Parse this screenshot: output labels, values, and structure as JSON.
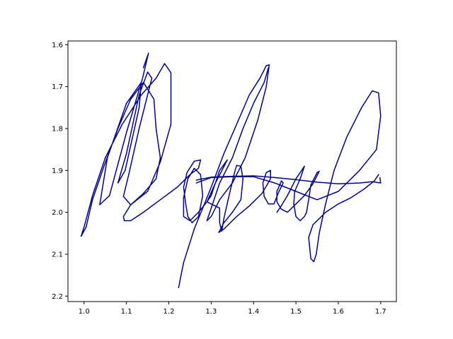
{
  "chart_data": {
    "type": "line",
    "title": "",
    "xlabel": "",
    "ylabel": "",
    "xlim": [
      0.962,
      1.737
    ],
    "ylim": [
      2.213,
      1.591
    ],
    "y_inverted": true,
    "grid": false,
    "x_ticks": [
      {
        "value": 1.0,
        "label": "1.0"
      },
      {
        "value": 1.1,
        "label": "1.1"
      },
      {
        "value": 1.2,
        "label": "1.2"
      },
      {
        "value": 1.3,
        "label": "1.3"
      },
      {
        "value": 1.4,
        "label": "1.4"
      },
      {
        "value": 1.5,
        "label": "1.5"
      },
      {
        "value": 1.6,
        "label": "1.6"
      },
      {
        "value": 1.7,
        "label": "1.7"
      }
    ],
    "y_ticks": [
      {
        "value": 1.6,
        "label": "1.6"
      },
      {
        "value": 1.7,
        "label": "1.7"
      },
      {
        "value": 1.8,
        "label": "1.8"
      },
      {
        "value": 1.9,
        "label": "1.9"
      },
      {
        "value": 2.0,
        "label": "2.0"
      },
      {
        "value": 2.1,
        "label": "2.1"
      },
      {
        "value": 2.2,
        "label": "2.2"
      }
    ],
    "series": [
      {
        "color": "#00008b",
        "strokes": [
          [
            [
              1.14,
              1.655
            ],
            [
              1.152,
              1.62
            ],
            [
              1.138,
              1.68
            ],
            [
              1.1,
              1.81
            ],
            [
              1.06,
              1.96
            ],
            [
              1.037,
              1.982
            ],
            [
              1.055,
              1.87
            ],
            [
              1.1,
              1.74
            ],
            [
              1.135,
              1.69
            ],
            [
              1.13,
              1.75
            ],
            [
              1.097,
              1.9
            ],
            [
              1.08,
              1.93
            ],
            [
              1.1,
              1.86
            ],
            [
              1.13,
              1.72
            ],
            [
              1.15,
              1.665
            ],
            [
              1.16,
              1.68
            ],
            [
              1.13,
              1.8
            ],
            [
              1.105,
              1.912
            ],
            [
              1.093,
              1.962
            ],
            [
              1.11,
              1.982
            ],
            [
              1.15,
              1.95
            ],
            [
              1.18,
              1.88
            ],
            [
              1.205,
              1.79
            ],
            [
              1.205,
              1.667
            ],
            [
              1.19,
              1.645
            ],
            [
              1.17,
              1.68
            ],
            [
              1.135,
              1.72
            ],
            [
              1.09,
              1.79
            ],
            [
              1.05,
              1.87
            ],
            [
              1.02,
              1.96
            ],
            [
              1.0,
              2.035
            ],
            [
              0.993,
              2.057
            ],
            [
              1.005,
              2.035
            ],
            [
              1.02,
              1.97
            ],
            [
              1.047,
              1.89
            ],
            [
              1.08,
              1.8
            ],
            [
              1.11,
              1.73
            ],
            [
              1.14,
              1.69
            ],
            [
              1.165,
              1.73
            ],
            [
              1.17,
              1.8
            ],
            [
              1.18,
              1.87
            ],
            [
              1.17,
              1.92
            ],
            [
              1.14,
              1.955
            ],
            [
              1.11,
              1.982
            ],
            [
              1.093,
              2.01
            ],
            [
              1.095,
              2.02
            ],
            [
              1.11,
              2.02
            ],
            [
              1.14,
              2.0
            ],
            [
              1.18,
              1.97
            ],
            [
              1.22,
              1.94
            ],
            [
              1.25,
              1.91
            ],
            [
              1.27,
              1.895
            ],
            [
              1.275,
              1.875
            ],
            [
              1.26,
              1.878
            ],
            [
              1.243,
              1.905
            ],
            [
              1.235,
              1.94
            ],
            [
              1.24,
              1.98
            ],
            [
              1.245,
              2.01
            ],
            [
              1.255,
              2.025
            ],
            [
              1.27,
              2.01
            ],
            [
              1.28,
              1.96
            ],
            [
              1.275,
              1.91
            ],
            [
              1.26,
              1.895
            ],
            [
              1.245,
              1.92
            ],
            [
              1.235,
              1.965
            ],
            [
              1.235,
              2.01
            ],
            [
              1.25,
              2.02
            ],
            [
              1.27,
              2.0
            ],
            [
              1.29,
              1.975
            ],
            [
              1.31,
              1.93
            ],
            [
              1.338,
              1.875
            ],
            [
              1.32,
              1.9
            ],
            [
              1.3,
              1.96
            ],
            [
              1.29,
              1.975
            ],
            [
              1.3,
              1.98
            ],
            [
              1.32,
              1.99
            ],
            [
              1.32,
              2.025
            ],
            [
              1.325,
              2.045
            ],
            [
              1.33,
              2.015
            ],
            [
              1.34,
              1.97
            ],
            [
              1.355,
              1.905
            ],
            [
              1.36,
              1.888
            ],
            [
              1.37,
              1.89
            ],
            [
              1.375,
              1.92
            ],
            [
              1.37,
              1.97
            ],
            [
              1.35,
              2.0
            ],
            [
              1.33,
              2.025
            ],
            [
              1.318,
              2.048
            ],
            [
              1.33,
              2.04
            ],
            [
              1.36,
              2.01
            ],
            [
              1.39,
              1.985
            ],
            [
              1.42,
              1.955
            ],
            [
              1.44,
              1.92
            ],
            [
              1.44,
              1.9
            ],
            [
              1.43,
              1.905
            ],
            [
              1.422,
              1.93
            ],
            [
              1.425,
              1.962
            ],
            [
              1.435,
              1.98
            ],
            [
              1.448,
              1.98
            ],
            [
              1.46,
              1.95
            ],
            [
              1.47,
              1.93
            ],
            [
              1.466,
              1.925
            ],
            [
              1.455,
              1.95
            ],
            [
              1.455,
              1.975
            ],
            [
              1.465,
              1.992
            ],
            [
              1.48,
              2.0
            ],
            [
              1.5,
              1.98
            ],
            [
              1.52,
              1.96
            ],
            [
              1.54,
              1.932
            ],
            [
              1.555,
              1.902
            ],
            [
              1.55,
              1.905
            ],
            [
              1.535,
              1.935
            ],
            [
              1.53,
              1.97
            ],
            [
              1.525,
              2.0
            ],
            [
              1.52,
              2.01
            ],
            [
              1.51,
              2.02
            ],
            [
              1.5,
              2.01
            ],
            [
              1.495,
              1.98
            ],
            [
              1.497,
              1.95
            ],
            [
              1.51,
              1.92
            ],
            [
              1.52,
              1.89
            ],
            [
              1.5,
              1.92
            ],
            [
              1.48,
              1.96
            ],
            [
              1.465,
              1.985
            ],
            [
              1.455,
              2.0
            ]
          ],
          [
            [
              1.265,
              1.923
            ],
            [
              1.3,
              1.916
            ],
            [
              1.35,
              1.914
            ],
            [
              1.4,
              1.913
            ],
            [
              1.45,
              1.917
            ],
            [
              1.5,
              1.922
            ],
            [
              1.55,
              1.928
            ],
            [
              1.6,
              1.932
            ],
            [
              1.65,
              1.93
            ],
            [
              1.68,
              1.927
            ],
            [
              1.7,
              1.93
            ],
            [
              1.698,
              1.917
            ]
          ],
          [
            [
              1.223,
              2.18
            ],
            [
              1.235,
              2.12
            ],
            [
              1.26,
              2.04
            ],
            [
              1.28,
              1.99
            ],
            [
              1.3,
              1.94
            ],
            [
              1.33,
              1.86
            ],
            [
              1.36,
              1.79
            ],
            [
              1.39,
              1.72
            ],
            [
              1.415,
              1.68
            ],
            [
              1.43,
              1.65
            ],
            [
              1.437,
              1.648
            ],
            [
              1.43,
              1.7
            ],
            [
              1.41,
              1.78
            ],
            [
              1.38,
              1.87
            ],
            [
              1.35,
              1.93
            ],
            [
              1.32,
              1.97
            ],
            [
              1.3,
              2.01
            ],
            [
              1.29,
              2.02
            ],
            [
              1.3,
              1.99
            ],
            [
              1.32,
              1.93
            ],
            [
              1.35,
              1.87
            ],
            [
              1.375,
              1.8
            ],
            [
              1.4,
              1.74
            ],
            [
              1.425,
              1.69
            ],
            [
              1.435,
              1.655
            ]
          ],
          [
            [
              1.265,
              1.93
            ],
            [
              1.3,
              1.917
            ],
            [
              1.35,
              1.915
            ],
            [
              1.4,
              1.915
            ],
            [
              1.45,
              1.93
            ],
            [
              1.5,
              1.95
            ],
            [
              1.55,
              1.97
            ],
            [
              1.6,
              1.95
            ],
            [
              1.65,
              1.9
            ],
            [
              1.69,
              1.85
            ],
            [
              1.7,
              1.77
            ],
            [
              1.695,
              1.715
            ],
            [
              1.68,
              1.71
            ],
            [
              1.655,
              1.75
            ],
            [
              1.62,
              1.82
            ],
            [
              1.59,
              1.9
            ],
            [
              1.57,
              1.98
            ],
            [
              1.555,
              2.05
            ],
            [
              1.548,
              2.1
            ],
            [
              1.542,
              2.118
            ],
            [
              1.535,
              2.11
            ],
            [
              1.53,
              2.06
            ],
            [
              1.54,
              2.03
            ],
            [
              1.57,
              2.0
            ],
            [
              1.6,
              1.98
            ],
            [
              1.63,
              1.965
            ],
            [
              1.66,
              1.945
            ],
            [
              1.685,
              1.925
            ],
            [
              1.695,
              1.91
            ]
          ]
        ]
      }
    ]
  }
}
